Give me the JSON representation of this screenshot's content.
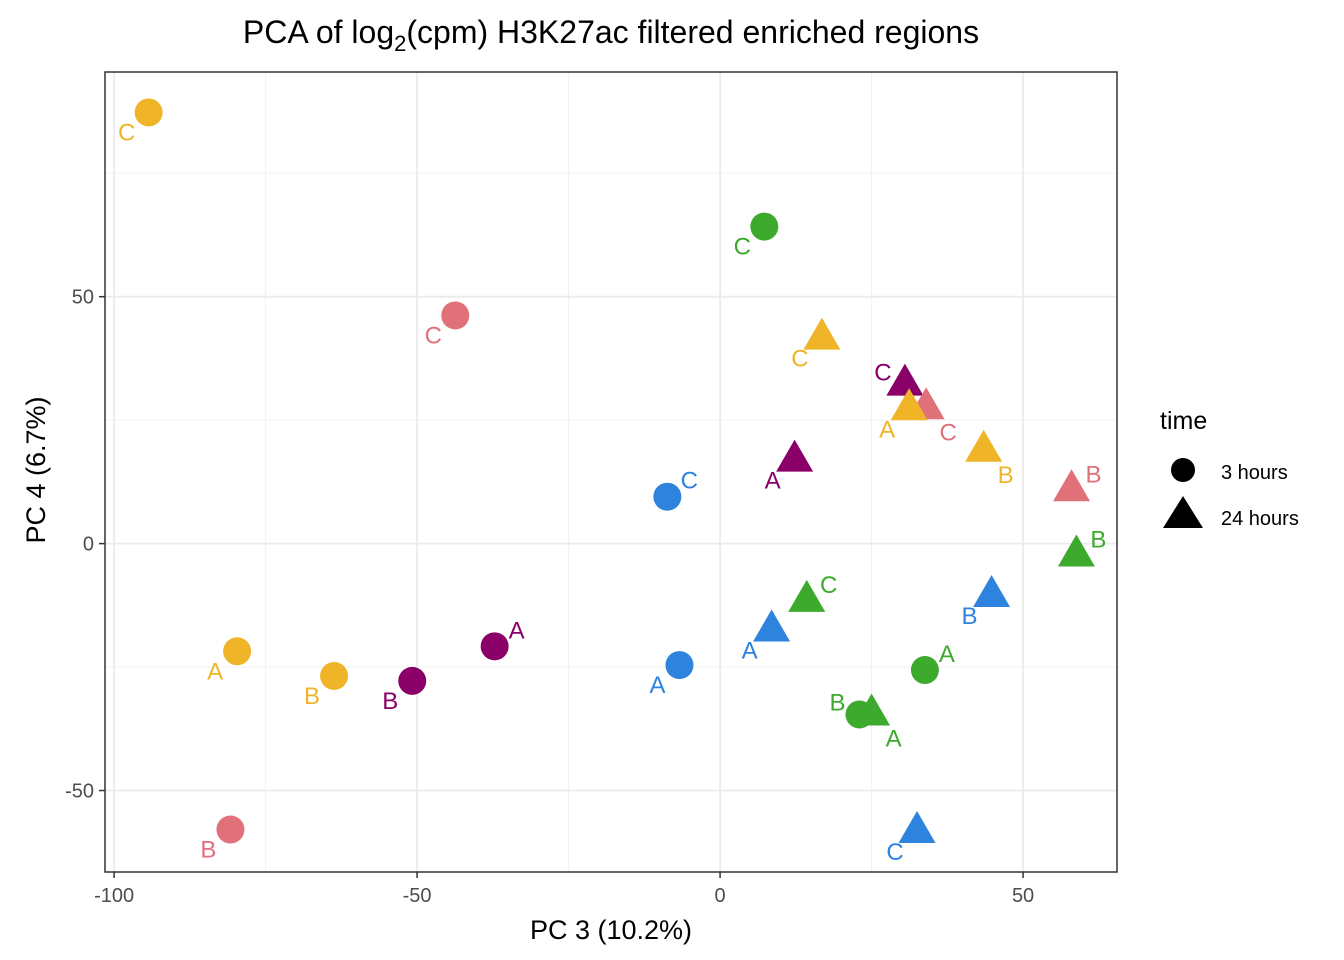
{
  "chart_data": {
    "type": "scatter",
    "title_prefix": "PCA of log",
    "title_sub": "2",
    "title_suffix": "(cpm)  H3K27ac filtered enriched regions",
    "xlabel": "PC 3 (10.2%)",
    "ylabel": "PC 4 (6.7%)",
    "xlim": [
      -101.5,
      65.5
    ],
    "ylim": [
      -66.5,
      95.5
    ],
    "xticks": [
      -100,
      -50,
      0,
      50
    ],
    "yticks": [
      -50,
      0,
      50
    ],
    "xtick_labels": [
      "-100",
      "-50",
      "0",
      "50"
    ],
    "ytick_labels": [
      "-50",
      "0",
      "50"
    ],
    "grid": true,
    "legend": {
      "title": "time",
      "position": "right",
      "items": [
        {
          "label": "3 hours",
          "shape": "circle"
        },
        {
          "label": "24 hours",
          "shape": "triangle"
        }
      ]
    },
    "colors": {
      "yellow": "#F0B429",
      "pink": "#E07079",
      "green": "#3DAA2E",
      "purple": "#8A0068",
      "blue": "#2E83DE"
    },
    "points": [
      {
        "x": -94.3,
        "y": 87.3,
        "shape": "circle",
        "color": "yellow",
        "label": "C",
        "lpos": "bl"
      },
      {
        "x": -43.7,
        "y": 46.2,
        "shape": "circle",
        "color": "pink",
        "label": "C",
        "lpos": "bl"
      },
      {
        "x": 7.3,
        "y": 64.2,
        "shape": "circle",
        "color": "green",
        "label": "C",
        "lpos": "bl"
      },
      {
        "x": -8.7,
        "y": 9.5,
        "shape": "circle",
        "color": "blue",
        "label": "C",
        "lpos": "tr"
      },
      {
        "x": -79.7,
        "y": -21.8,
        "shape": "circle",
        "color": "yellow",
        "label": "A",
        "lpos": "bl"
      },
      {
        "x": -63.7,
        "y": -26.8,
        "shape": "circle",
        "color": "yellow",
        "label": "B",
        "lpos": "bl"
      },
      {
        "x": -50.8,
        "y": -27.8,
        "shape": "circle",
        "color": "purple",
        "label": "B",
        "lpos": "bl"
      },
      {
        "x": -37.2,
        "y": -20.8,
        "shape": "circle",
        "color": "purple",
        "label": "A",
        "lpos": "tr"
      },
      {
        "x": -6.7,
        "y": -24.6,
        "shape": "circle",
        "color": "blue",
        "label": "A",
        "lpos": "bl"
      },
      {
        "x": 33.8,
        "y": -25.6,
        "shape": "circle",
        "color": "green",
        "label": "A",
        "lpos": "tr"
      },
      {
        "x": 23.0,
        "y": -34.6,
        "shape": "circle",
        "color": "green",
        "label": "B",
        "lpos": "tl"
      },
      {
        "x": -80.8,
        "y": -57.9,
        "shape": "circle",
        "color": "pink",
        "label": "B",
        "lpos": "bl"
      },
      {
        "x": 16.8,
        "y": 41.5,
        "shape": "triangle",
        "color": "yellow",
        "label": "C",
        "lpos": "bl"
      },
      {
        "x": 30.5,
        "y": 32.2,
        "shape": "triangle",
        "color": "purple",
        "label": "C",
        "lpos": "tl"
      },
      {
        "x": 34.0,
        "y": 27.4,
        "shape": "triangle",
        "color": "pink",
        "label": "C",
        "lpos": "br"
      },
      {
        "x": 31.2,
        "y": 27.2,
        "shape": "triangle",
        "color": "yellow",
        "label": "A",
        "lpos": "bl"
      },
      {
        "x": 43.5,
        "y": 18.8,
        "shape": "triangle",
        "color": "yellow",
        "label": "B",
        "lpos": "br"
      },
      {
        "x": 12.3,
        "y": 16.8,
        "shape": "triangle",
        "color": "purple",
        "label": "A",
        "lpos": "bl"
      },
      {
        "x": 58.0,
        "y": 10.8,
        "shape": "triangle",
        "color": "pink",
        "label": "B",
        "lpos": "tr"
      },
      {
        "x": 58.8,
        "y": -2.4,
        "shape": "triangle",
        "color": "green",
        "label": "B",
        "lpos": "tr"
      },
      {
        "x": 14.3,
        "y": -11.6,
        "shape": "triangle",
        "color": "green",
        "label": "C",
        "lpos": "tr"
      },
      {
        "x": 44.8,
        "y": -10.6,
        "shape": "triangle",
        "color": "blue",
        "label": "B",
        "lpos": "bl"
      },
      {
        "x": 8.5,
        "y": -17.6,
        "shape": "triangle",
        "color": "blue",
        "label": "A",
        "lpos": "bl"
      },
      {
        "x": 25.0,
        "y": -34.6,
        "shape": "triangle",
        "color": "green",
        "label": "A",
        "lpos": "br"
      },
      {
        "x": 32.5,
        "y": -58.4,
        "shape": "triangle",
        "color": "blue",
        "label": "C",
        "lpos": "bl"
      }
    ]
  }
}
